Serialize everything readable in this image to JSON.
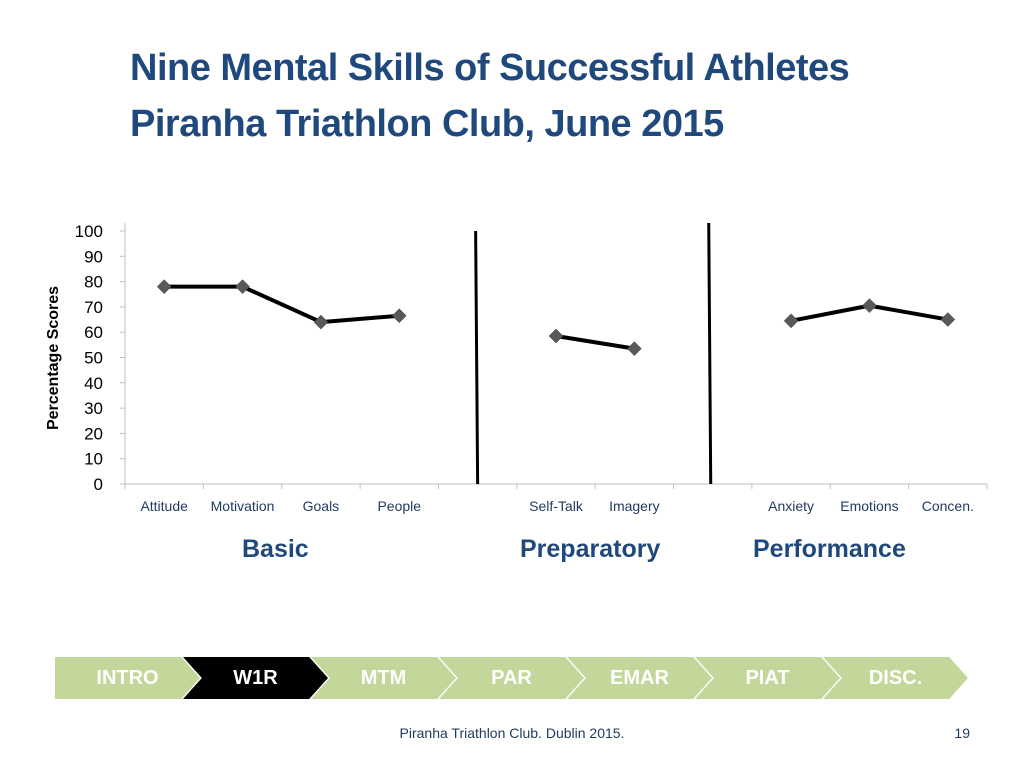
{
  "slide": {
    "title_line1": "Nine Mental Skills of Successful Athletes",
    "title_line2": "Piranha Triathlon Club, June 2015",
    "footer_text": "Piranha Triathlon Club. Dublin 2015.",
    "page_number": "19"
  },
  "groups": {
    "basic": "Basic",
    "preparatory": "Preparatory",
    "performance": "Performance"
  },
  "nav": {
    "items": [
      {
        "label": "INTRO",
        "active": false
      },
      {
        "label": "W1R",
        "active": true
      },
      {
        "label": "MTM",
        "active": false
      },
      {
        "label": "PAR",
        "active": false
      },
      {
        "label": "EMAR",
        "active": false
      },
      {
        "label": "PIAT",
        "active": false
      },
      {
        "label": "DISC.",
        "active": false
      }
    ],
    "active_color": "#000000",
    "inactive_color": "#c4d79b"
  },
  "chart_data": {
    "type": "line",
    "title": "",
    "xlabel": "",
    "ylabel": "Percentage Scores",
    "ylim": [
      0,
      100
    ],
    "yticks": [
      0,
      10,
      20,
      30,
      40,
      50,
      60,
      70,
      80,
      90,
      100
    ],
    "categories": [
      "Attitude",
      "Motivation",
      "Goals",
      "People",
      "",
      "Self-Talk",
      "Imagery",
      "",
      "Anxiety",
      "Emotions",
      "Concen."
    ],
    "series": [
      {
        "values": [
          78,
          78,
          64,
          66.5,
          null,
          58.5,
          53.5,
          null,
          64.5,
          70.5,
          65
        ]
      }
    ],
    "separators_after_category_index": [
      4,
      7
    ],
    "grid": false,
    "legend": "none",
    "line_color": "#000000",
    "marker_color": "#595959"
  }
}
